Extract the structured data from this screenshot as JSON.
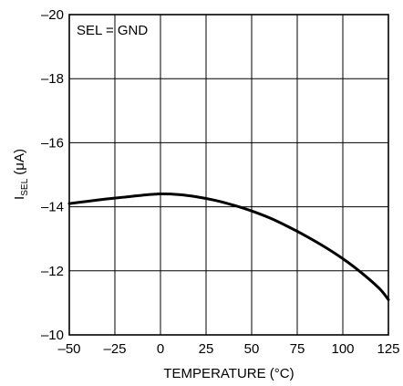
{
  "chart_data": {
    "type": "line",
    "title": "",
    "xlabel": "TEMPERATURE (°C)",
    "ylabel": {
      "main": "I",
      "sub": "SEL",
      "unit": " (μA)"
    },
    "xlim": [
      -50,
      125
    ],
    "ylim": [
      -10,
      -20
    ],
    "x_ticks": [
      -50,
      -25,
      0,
      25,
      50,
      75,
      100,
      125
    ],
    "y_ticks": [
      -10,
      -12,
      -14,
      -16,
      -18,
      -20
    ],
    "x_tick_labels": [
      "–50",
      "–25",
      "0",
      "25",
      "50",
      "75",
      "100",
      "125"
    ],
    "y_tick_labels": [
      "–10",
      "–12",
      "–14",
      "–16",
      "–18",
      "–20"
    ],
    "grid": true,
    "annotation": "SEL = GND",
    "series": [
      {
        "x": [
          -50,
          -40,
          -30,
          -20,
          -10,
          0,
          10,
          20,
          30,
          40,
          50,
          60,
          70,
          80,
          90,
          100,
          110,
          120,
          125
        ],
        "y": [
          -14.1,
          -14.17,
          -14.24,
          -14.3,
          -14.36,
          -14.4,
          -14.38,
          -14.31,
          -14.2,
          -14.05,
          -13.87,
          -13.65,
          -13.38,
          -13.08,
          -12.75,
          -12.38,
          -11.95,
          -11.45,
          -11.1
        ],
        "color": "#000000"
      }
    ]
  }
}
